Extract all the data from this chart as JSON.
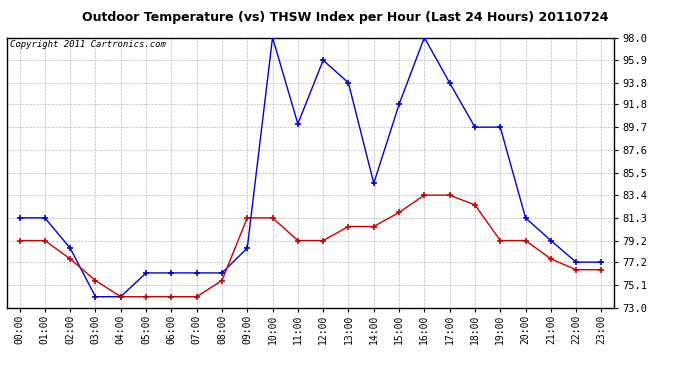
{
  "title": "Outdoor Temperature (vs) THSW Index per Hour (Last 24 Hours) 20110724",
  "copyright": "Copyright 2011 Cartronics.com",
  "x_labels": [
    "00:00",
    "01:00",
    "02:00",
    "03:00",
    "04:00",
    "05:00",
    "06:00",
    "07:00",
    "08:00",
    "09:00",
    "10:00",
    "11:00",
    "12:00",
    "13:00",
    "14:00",
    "15:00",
    "16:00",
    "17:00",
    "18:00",
    "19:00",
    "20:00",
    "21:00",
    "22:00",
    "23:00"
  ],
  "blue_data": [
    81.3,
    81.3,
    78.5,
    74.0,
    74.0,
    76.2,
    76.2,
    76.2,
    76.2,
    78.5,
    98.0,
    90.0,
    95.9,
    93.8,
    84.5,
    91.8,
    98.0,
    93.8,
    89.7,
    89.7,
    81.3,
    79.2,
    77.2,
    77.2
  ],
  "red_data": [
    79.2,
    79.2,
    77.5,
    75.5,
    74.0,
    74.0,
    74.0,
    74.0,
    75.5,
    81.3,
    81.3,
    79.2,
    79.2,
    80.5,
    80.5,
    81.8,
    83.4,
    83.4,
    82.5,
    79.2,
    79.2,
    77.5,
    76.5,
    76.5
  ],
  "blue_color": "#0000dd",
  "red_color": "#cc0000",
  "bg_color": "#ffffff",
  "grid_color": "#bbbbbb",
  "ylim_min": 73.0,
  "ylim_max": 98.0,
  "yticks": [
    73.0,
    75.1,
    77.2,
    79.2,
    81.3,
    83.4,
    85.5,
    87.6,
    89.7,
    91.8,
    93.8,
    95.9,
    98.0
  ]
}
